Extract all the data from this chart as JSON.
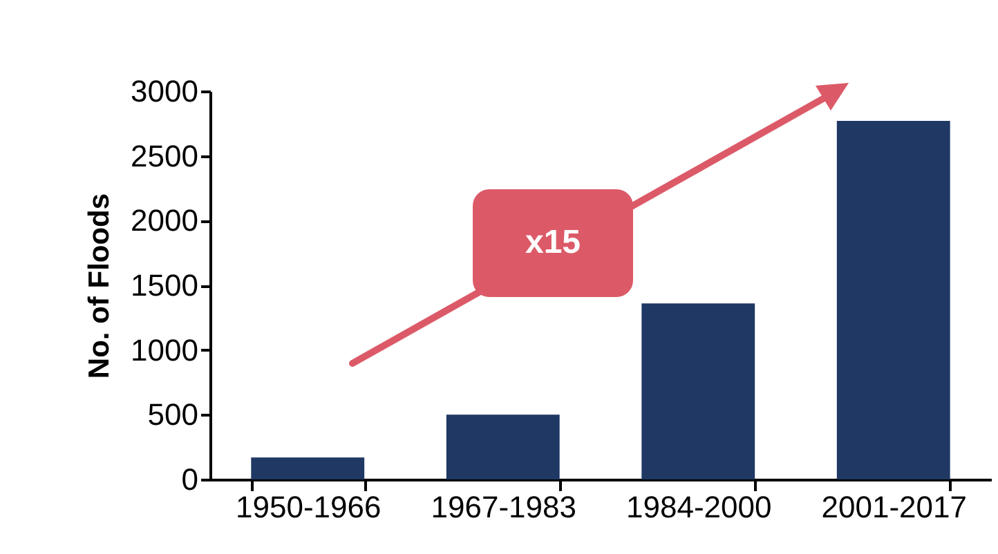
{
  "chart_data": {
    "type": "bar",
    "ylabel": "No. of Floods",
    "categories": [
      "1950-1966",
      "1967-1983",
      "1984-2000",
      "2001-2017"
    ],
    "values": [
      170,
      500,
      1360,
      2770
    ],
    "color": "#1f3864",
    "ylim": [
      0,
      3000
    ],
    "yticks": [
      0,
      500,
      1000,
      1500,
      2000,
      2500,
      3000
    ],
    "grid": false,
    "annotations": [
      "x15"
    ]
  }
}
